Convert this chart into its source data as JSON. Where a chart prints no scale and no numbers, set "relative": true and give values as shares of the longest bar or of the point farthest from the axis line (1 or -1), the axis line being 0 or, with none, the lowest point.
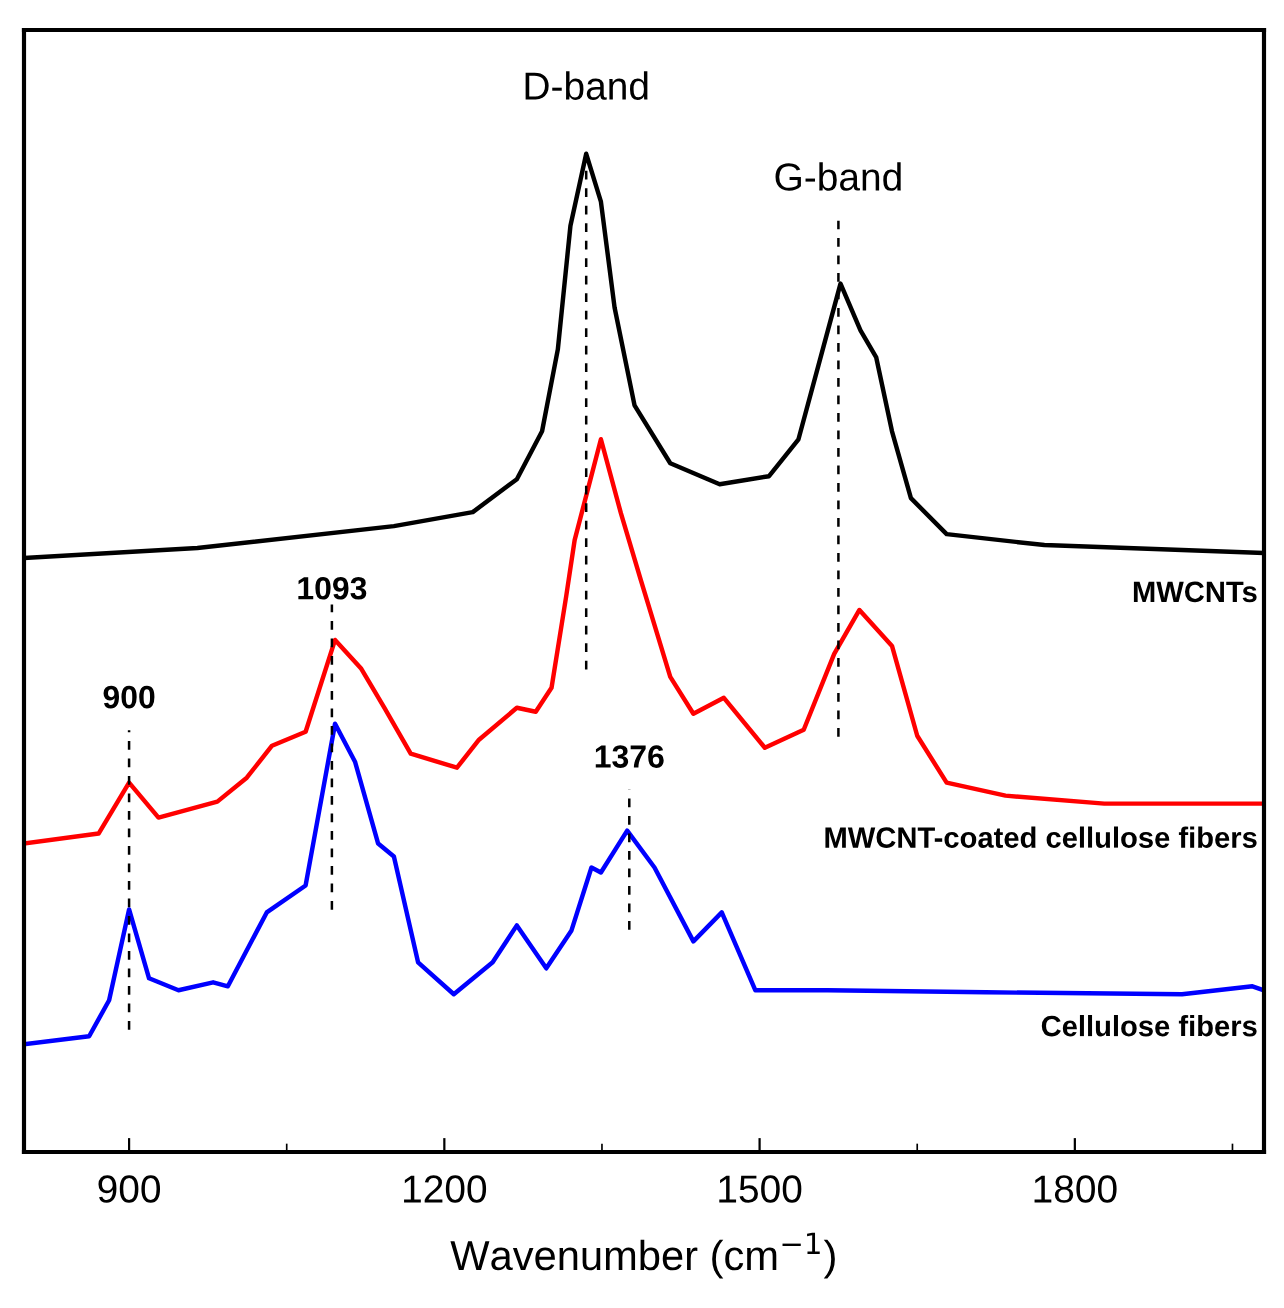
{
  "chart_data": {
    "type": "line",
    "relative": true,
    "xlabel": "Wavenumber (cm$^{−1}$)",
    "xlim": [
      800,
      1980
    ],
    "xticks": [
      900,
      {
        "value": 1050,
        "label": null
      },
      1200,
      {
        "value": 1350,
        "label": null
      },
      1500,
      {
        "value": 1650,
        "label": null
      },
      1800,
      {
        "value": 1950,
        "label": null
      }
    ],
    "legend": false,
    "grid": false,
    "marker": "none",
    "line_style": "solid",
    "series": [
      {
        "name": "MWCNTs",
        "color": "#000000",
        "x": [
          800,
          965,
          1152,
          1227,
          1269,
          1293,
          1308,
          1320,
          1335,
          1349,
          1362,
          1381,
          1415,
          1462,
          1509,
          1537,
          1556,
          1577,
          1596,
          1611,
          1626,
          1644,
          1678,
          1771,
          1902,
          1980
        ],
        "values": [
          0.595,
          0.605,
          0.627,
          0.641,
          0.674,
          0.722,
          0.804,
          0.928,
          1.0,
          0.952,
          0.846,
          0.748,
          0.69,
          0.669,
          0.677,
          0.714,
          0.788,
          0.87,
          0.823,
          0.796,
          0.722,
          0.655,
          0.619,
          0.608,
          0.603,
          0.6
        ]
      },
      {
        "name": "MWCNT-coated cellulose fibers",
        "color": "#ff0000",
        "x": [
          800,
          871,
          900,
          928,
          984,
          1012,
          1036,
          1068,
          1096,
          1121,
          1143,
          1168,
          1212,
          1233,
          1269,
          1287,
          1302,
          1316,
          1324,
          1349,
          1368,
          1387,
          1415,
          1437,
          1466,
          1505,
          1542,
          1571,
          1595,
          1626,
          1650,
          1678,
          1734,
          1828,
          1980
        ],
        "values": [
          0.309,
          0.319,
          0.37,
          0.335,
          0.351,
          0.375,
          0.407,
          0.421,
          0.513,
          0.484,
          0.445,
          0.399,
          0.385,
          0.413,
          0.445,
          0.441,
          0.465,
          0.557,
          0.613,
          0.714,
          0.64,
          0.573,
          0.476,
          0.439,
          0.455,
          0.405,
          0.423,
          0.499,
          0.543,
          0.507,
          0.417,
          0.37,
          0.357,
          0.349,
          0.349
        ]
      },
      {
        "name": "Cellulose fibers",
        "color": "#0000ff",
        "x": [
          800,
          862,
          881,
          900,
          919,
          947,
          980,
          994,
          1031,
          1068,
          1096,
          1115,
          1137,
          1152,
          1175,
          1209,
          1246,
          1269,
          1297,
          1321,
          1340,
          1349,
          1374,
          1400,
          1437,
          1464,
          1496,
          1565,
          1715,
          1902,
          1969,
          1980
        ],
        "values": [
          0.108,
          0.116,
          0.152,
          0.243,
          0.174,
          0.162,
          0.17,
          0.166,
          0.24,
          0.267,
          0.429,
          0.391,
          0.309,
          0.296,
          0.19,
          0.158,
          0.19,
          0.227,
          0.184,
          0.222,
          0.285,
          0.28,
          0.322,
          0.285,
          0.211,
          0.24,
          0.162,
          0.162,
          0.16,
          0.158,
          0.166,
          0.162
        ]
      }
    ],
    "ref_lines": [
      {
        "axis": "x",
        "value": 1335,
        "label": "D-band",
        "line_style": "dashed",
        "color": "#000000"
      },
      {
        "axis": "x",
        "value": 1575,
        "label": "G-band",
        "line_style": "dashed",
        "color": "#000000"
      },
      {
        "axis": "x",
        "value": 1093,
        "label": "1093",
        "line_style": "dashed",
        "color": "#000000"
      },
      {
        "axis": "x",
        "value": 900,
        "label": "900",
        "line_style": "dashed",
        "color": "#000000"
      },
      {
        "axis": "x",
        "value": 1376,
        "label": "1376",
        "line_style": "dashed",
        "color": "#000000"
      }
    ]
  }
}
